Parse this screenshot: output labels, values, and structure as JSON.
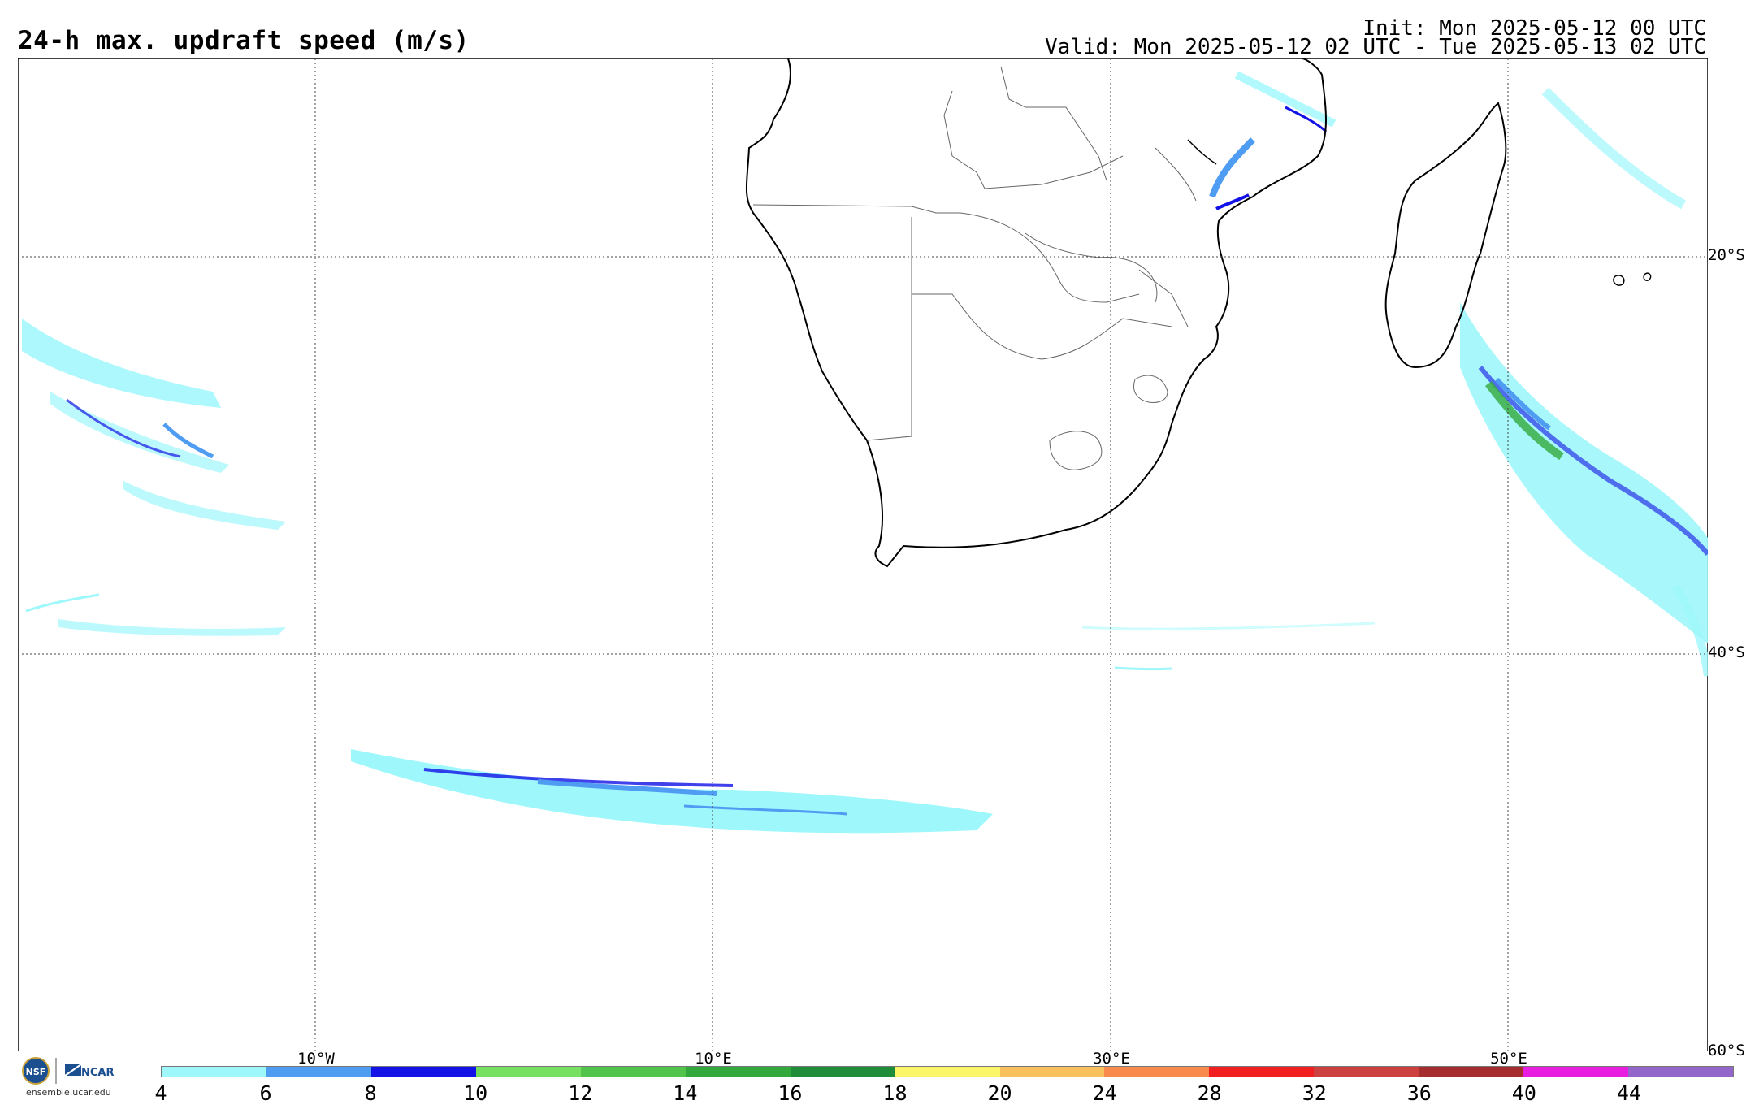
{
  "header": {
    "title": "24-h max. updraft speed (m/s)",
    "init": "Init: Mon 2025-05-12 00 UTC",
    "valid": "Valid: Mon 2025-05-12 02 UTC - Tue 2025-05-13 02 UTC"
  },
  "map": {
    "latitude_labels": [
      "20°S",
      "40°S",
      "60°S"
    ],
    "longitude_labels": [
      "10°W",
      "10°E",
      "30°E",
      "50°E"
    ],
    "gridlines": "dotted"
  },
  "colorbar": {
    "ticks": [
      "4",
      "6",
      "8",
      "10",
      "12",
      "14",
      "16",
      "18",
      "20",
      "24",
      "28",
      "32",
      "36",
      "40",
      "44"
    ],
    "colors": [
      "#9ef7fb",
      "#4f9cf3",
      "#1212e6",
      "#78e060",
      "#52c44c",
      "#32a93c",
      "#1f8c3a",
      "#fbf56a",
      "#f9c15d",
      "#f98a4e",
      "#f11f1f",
      "#cc4040",
      "#a52d2d",
      "#e81de0",
      "#9366c9"
    ]
  },
  "logo": {
    "agencies": [
      "NSF",
      "NCAR"
    ],
    "site": "ensemble.ucar.edu"
  }
}
